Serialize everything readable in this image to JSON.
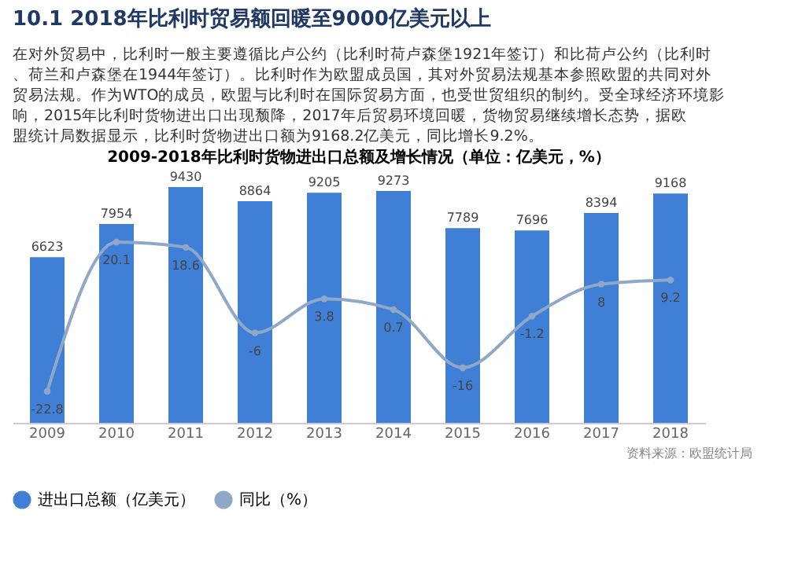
{
  "chart_data": {
    "type": "bar",
    "title": "10.1 2018年比利时贸易额回暖至9000亿美元以上",
    "subtitle": "2009-2018年比利时货物进出口总额及增长情况（单位：亿美元，%）",
    "annotations": [
      "在对外贸易中，比利时一般主要遵循比卢公约（比利时荷卢森堡1921年签订）和比荷卢公约（比利时、荷兰和卢森堡在1944年签订）。比利时作为欧盟成员国，其对外贸易法规基本参照欧盟的共同对外贸易法规。作为WTO的成员，欧盟与比利时在国际贸易方面，也受世贸组织的制约。受全球经济环境影响，2015年比利时货物进出口出现颓降，2017年后贸易环境回暖，货物贸易继续增长态势，据欧盟统计局数据显示，比利时货物进出口额为9168.2亿美元，同比增长9.2%。",
      "资料来源：欧盟统计局"
    ],
    "categories": [
      "2009",
      "2010",
      "2011",
      "2012",
      "2013",
      "2014",
      "2015",
      "2016",
      "2017",
      "2018"
    ],
    "series": [
      {
        "name": "进出口总额（亿美元）",
        "color": "#3f7fd6",
        "values": [
          6623,
          7954,
          9430,
          8864,
          9205,
          9273,
          7789,
          7696,
          8394,
          9168
        ]
      },
      {
        "name": "同比（%）",
        "type": "line",
        "axis": "y2",
        "color": "#8fa8c8",
        "marker": "circle",
        "values": [
          -22.8,
          20.1,
          18.6,
          -6,
          3.8,
          0.7,
          -16,
          -1.2,
          8,
          9.2
        ]
      }
    ],
    "data_labels": true,
    "tick_labels": "x",
    "legend": "bottom",
    "grid": false
  }
}
